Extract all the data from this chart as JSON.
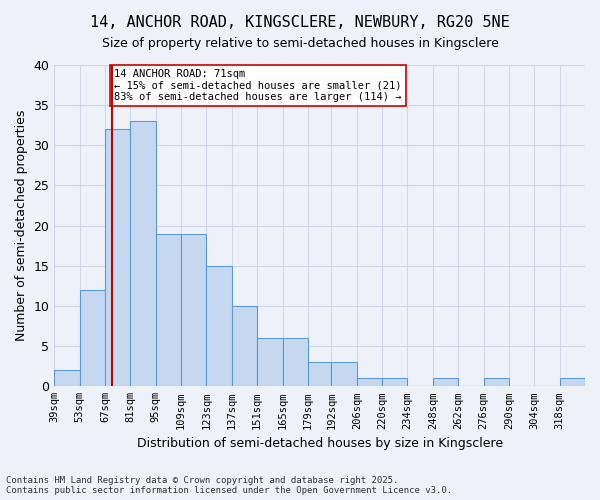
{
  "title1": "14, ANCHOR ROAD, KINGSCLERE, NEWBURY, RG20 5NE",
  "title2": "Size of property relative to semi-detached houses in Kingsclere",
  "xlabel": "Distribution of semi-detached houses by size in Kingsclere",
  "ylabel": "Number of semi-detached properties",
  "bin_labels": [
    "39sqm",
    "53sqm",
    "67sqm",
    "81sqm",
    "95sqm",
    "109sqm",
    "123sqm",
    "137sqm",
    "151sqm",
    "165sqm",
    "179sqm",
    "192sqm",
    "206sqm",
    "220sqm",
    "234sqm",
    "248sqm",
    "262sqm",
    "276sqm",
    "290sqm",
    "304sqm",
    "318sqm"
  ],
  "bin_edges": [
    39,
    53,
    67,
    81,
    95,
    109,
    123,
    137,
    151,
    165,
    179,
    192,
    206,
    220,
    234,
    248,
    262,
    276,
    290,
    304,
    318,
    332
  ],
  "bar_heights": [
    2,
    12,
    32,
    33,
    19,
    19,
    15,
    10,
    6,
    6,
    3,
    3,
    1,
    1,
    0,
    1,
    0,
    1,
    0,
    0,
    1
  ],
  "bar_color": "#c5d8f0",
  "bar_edge_color": "#5b9bd5",
  "grid_color": "#d0d8e8",
  "background_color": "#eef2f8",
  "vline_x": 71,
  "vline_color": "#cc0000",
  "annotation_text": "14 ANCHOR ROAD: 71sqm\n← 15% of semi-detached houses are smaller (21)\n83% of semi-detached houses are larger (114) →",
  "annotation_box_color": "#ffffff",
  "annotation_box_edge": "#cc0000",
  "footer": "Contains HM Land Registry data © Crown copyright and database right 2025.\nContains public sector information licensed under the Open Government Licence v3.0.",
  "ylim": [
    0,
    40
  ],
  "yticks": [
    0,
    5,
    10,
    15,
    20,
    25,
    30,
    35,
    40
  ]
}
